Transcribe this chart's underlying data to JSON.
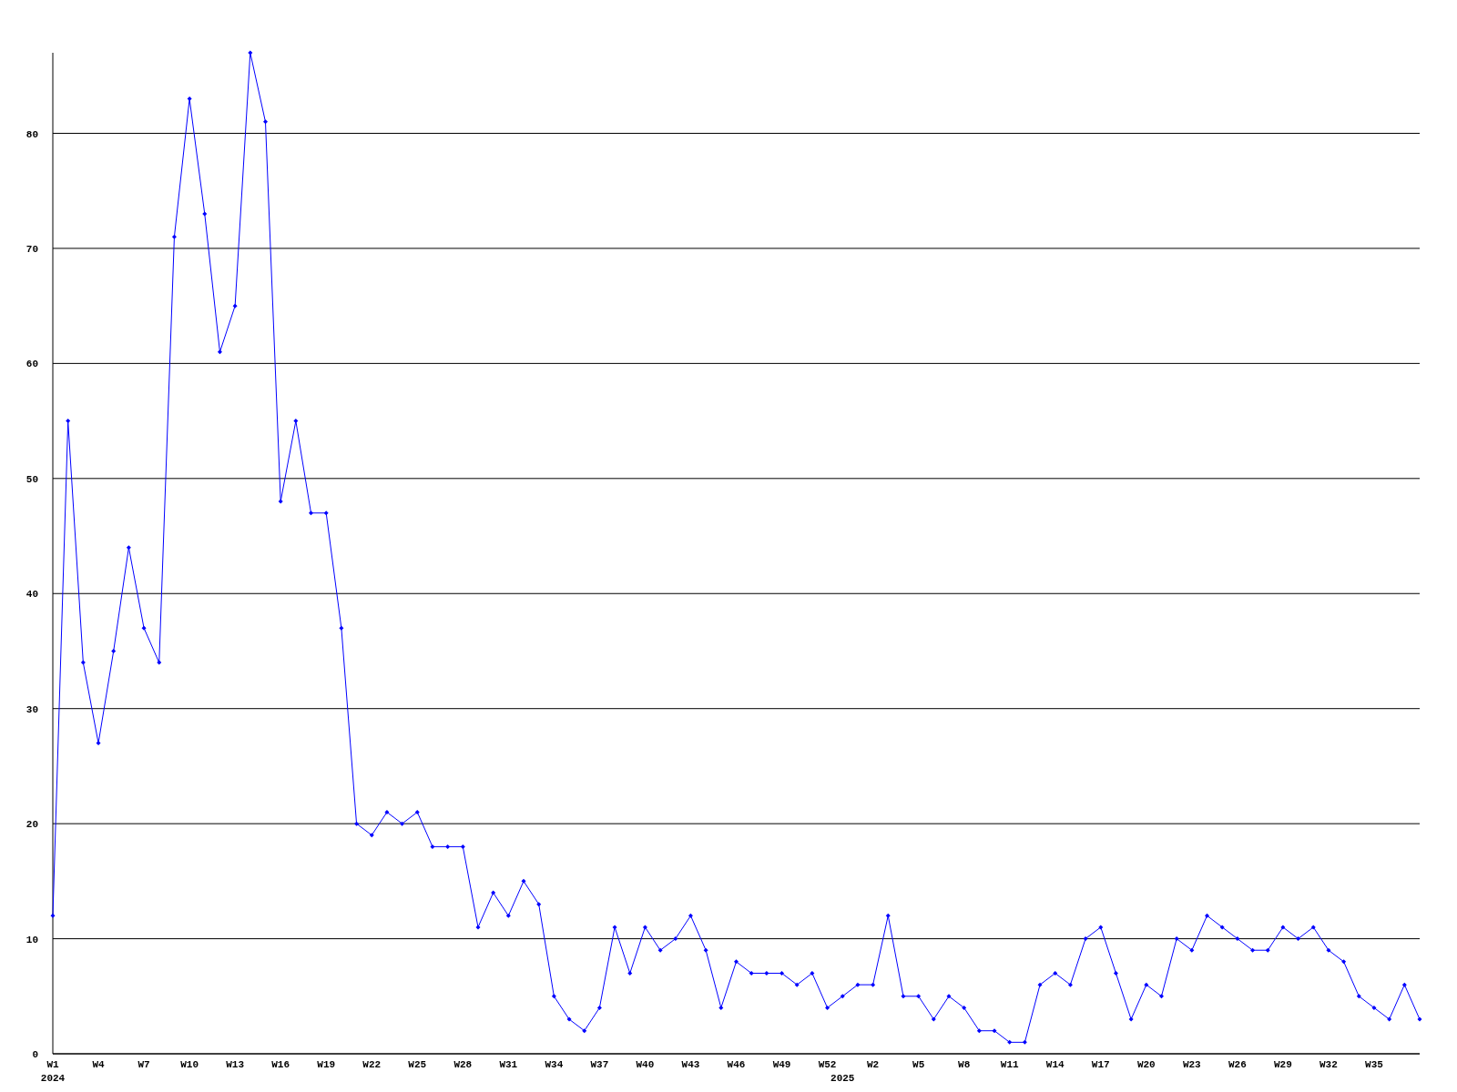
{
  "chart_data": {
    "type": "line",
    "categories": [
      "W1\n2024",
      null,
      null,
      "W4",
      null,
      null,
      "W7",
      null,
      null,
      "W10",
      null,
      null,
      "W13",
      null,
      null,
      "W16",
      null,
      null,
      "W19",
      null,
      null,
      "W22",
      null,
      null,
      "W25",
      null,
      null,
      "W28",
      null,
      null,
      "W31",
      null,
      null,
      "W34",
      null,
      null,
      "W37",
      null,
      null,
      "W40",
      null,
      null,
      "W43",
      null,
      null,
      "W46",
      null,
      null,
      "W49",
      null,
      null,
      "W52",
      "\n2025",
      null,
      "W2",
      null,
      null,
      "W5",
      null,
      null,
      "W8",
      null,
      null,
      "W11",
      null,
      null,
      "W14",
      null,
      null,
      "W17",
      null,
      null,
      "W20",
      null,
      null,
      "W23",
      null,
      null,
      "W26",
      null,
      null,
      "W29",
      null,
      null,
      "W32",
      null,
      null,
      "W35",
      null,
      null,
      null
    ],
    "series": [
      {
        "color": "#0000ff",
        "values": [
          12,
          55,
          34,
          27,
          35,
          44,
          37,
          34,
          71,
          83,
          73,
          61,
          65,
          87,
          81,
          48,
          55,
          47,
          47,
          37,
          20,
          19,
          21,
          20,
          21,
          18,
          18,
          18,
          11,
          14,
          12,
          15,
          13,
          5,
          3,
          2,
          4,
          11,
          7,
          11,
          9,
          10,
          12,
          9,
          4,
          8,
          7,
          7,
          7,
          6,
          7,
          4,
          5,
          6,
          6,
          12,
          5,
          5,
          3,
          5,
          4,
          2,
          2,
          1,
          1,
          6,
          7,
          6,
          10,
          11,
          7,
          3,
          6,
          5,
          10,
          9,
          12,
          11,
          10,
          9,
          9,
          11,
          10,
          11,
          9,
          8,
          5,
          4,
          3,
          6,
          3
        ]
      }
    ],
    "ylim": [
      0,
      87
    ],
    "yticks": [
      0,
      10,
      20,
      30,
      40,
      50,
      60,
      70,
      80
    ],
    "grid": "y",
    "marker": "diamond",
    "line_style": "solid"
  }
}
